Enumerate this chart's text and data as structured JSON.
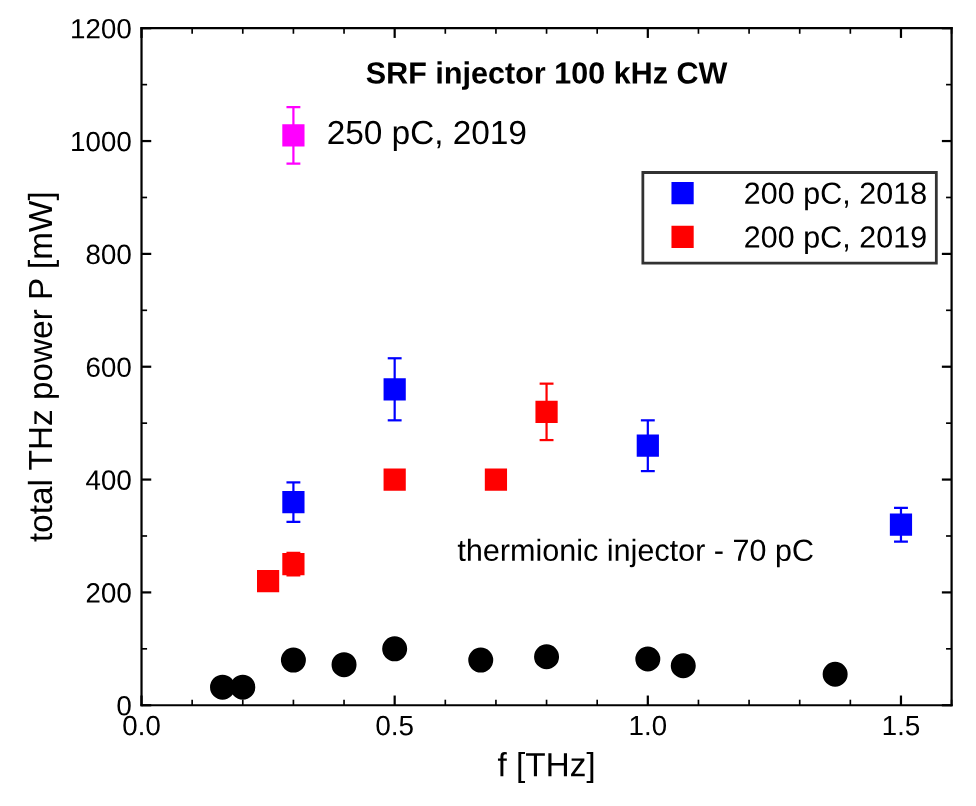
{
  "chart_data": {
    "type": "scatter",
    "title": "SRF injector 100 kHz CW",
    "xlabel": "f [THz]",
    "ylabel": "total THz power P [mW]",
    "xlim": [
      0,
      1.6
    ],
    "ylim": [
      0,
      1200
    ],
    "xticks": [
      {
        "value": 0,
        "label": "0.0"
      },
      0.5,
      {
        "value": 1,
        "label": "1.0"
      },
      1.5
    ],
    "yticks": [
      0,
      200,
      400,
      600,
      800,
      1000,
      1200
    ],
    "marker": "square",
    "legend": "right",
    "grid": false,
    "series": [
      {
        "name": "200 pC, 2018",
        "color": "#0000ff",
        "x": [
          0.3,
          0.5,
          1.0,
          1.5
        ],
        "values": [
          360,
          560,
          460,
          320
        ],
        "errors": [
          35,
          55,
          45,
          30
        ]
      },
      {
        "name": "200 pC, 2019",
        "color": "#ff0000",
        "x": [
          0.25,
          0.3,
          0.5,
          0.7,
          0.8
        ],
        "values": [
          220,
          250,
          400,
          400,
          520
        ],
        "errors": [
          15,
          20,
          15,
          15,
          50
        ]
      },
      {
        "color": "#ff00ff",
        "x": [
          0.3
        ],
        "values": [
          1010
        ],
        "errors": [
          50
        ]
      },
      {
        "color": "#000000",
        "marker": "circle",
        "x": [
          0.16,
          0.2,
          0.3,
          0.4,
          0.5,
          0.67,
          0.8,
          1.0,
          1.07,
          1.37
        ],
        "values": [
          32,
          32,
          80,
          72,
          100,
          80,
          86,
          82,
          70,
          55
        ]
      }
    ],
    "annotations": [
      {
        "text": "250 pC, 2019",
        "x": 0.3,
        "y": 1010
      },
      "thermionic injector - 70 pC"
    ]
  }
}
